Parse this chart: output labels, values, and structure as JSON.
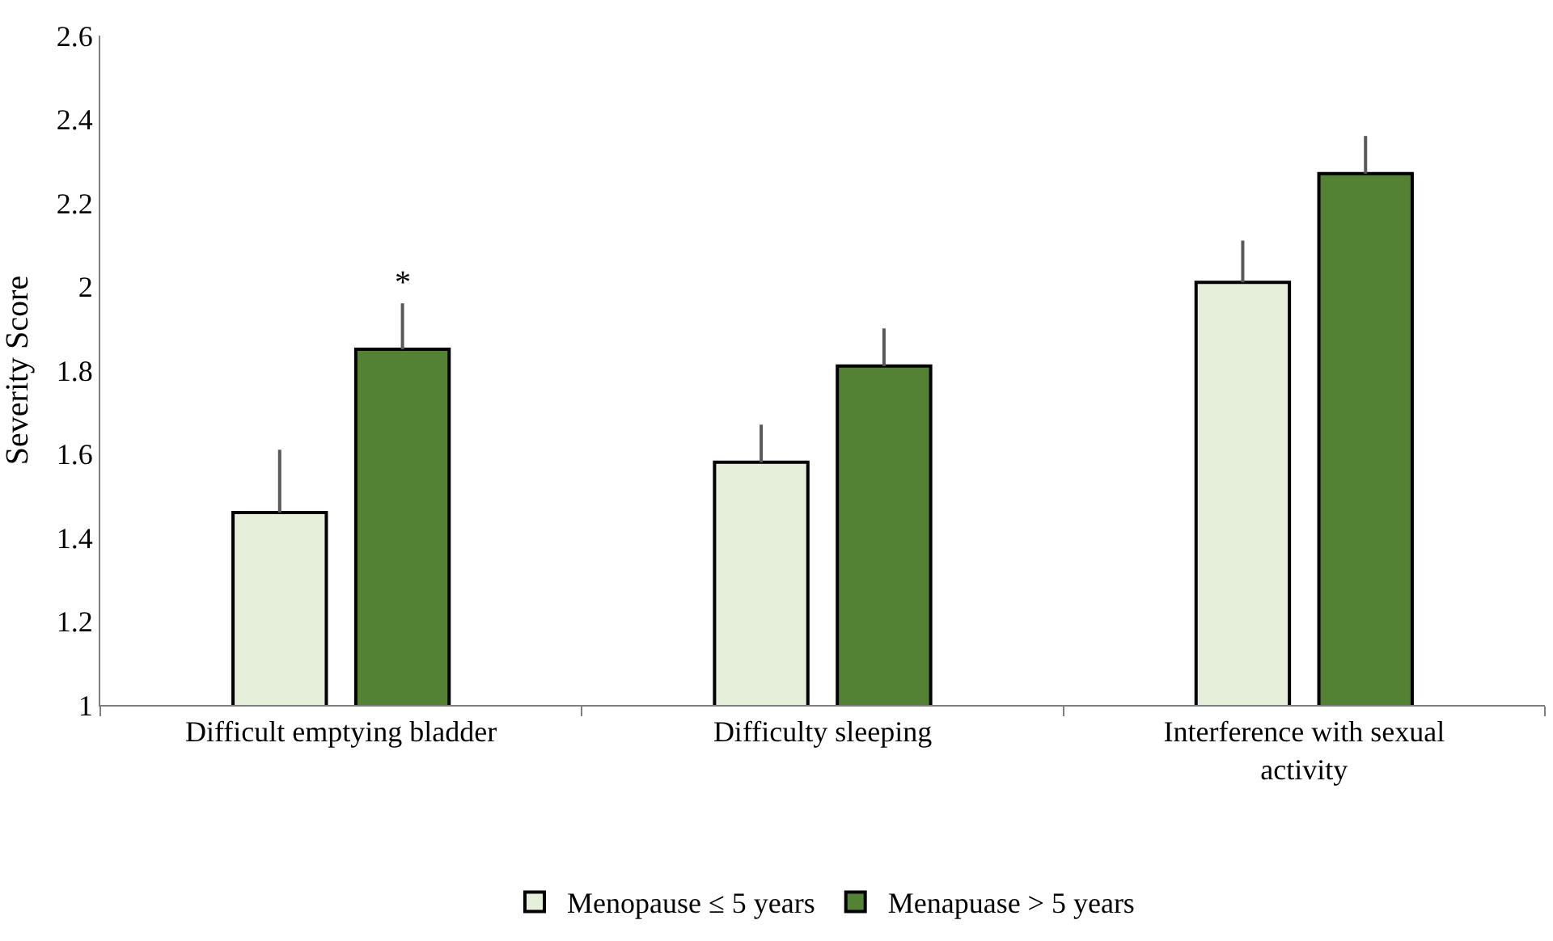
{
  "chart_data": {
    "type": "bar",
    "ylabel": "Severity Score",
    "categories": [
      "Difficult emptying bladder",
      "Difficulty sleeping",
      "Interference with sexual activity"
    ],
    "series": [
      {
        "name": "Menopause ≤ 5 years",
        "color": "#e6efd9",
        "values": [
          1.46,
          1.58,
          2.01
        ],
        "errors": [
          [
            1.46,
            1.61
          ],
          [
            1.58,
            1.67
          ],
          [
            2.01,
            2.11
          ]
        ]
      },
      {
        "name": "Menapuase > 5 years",
        "color": "#548235",
        "values": [
          1.85,
          1.81,
          2.27
        ],
        "errors": [
          [
            1.85,
            1.96
          ],
          [
            1.81,
            1.9
          ],
          [
            2.27,
            2.36
          ]
        ]
      }
    ],
    "ylim": [
      1,
      2.6
    ],
    "yticks": [
      1,
      1.2,
      1.4,
      1.6,
      1.8,
      2,
      2.2,
      2.4,
      2.6
    ],
    "annotations": [
      "*"
    ],
    "legend": "bottom"
  }
}
